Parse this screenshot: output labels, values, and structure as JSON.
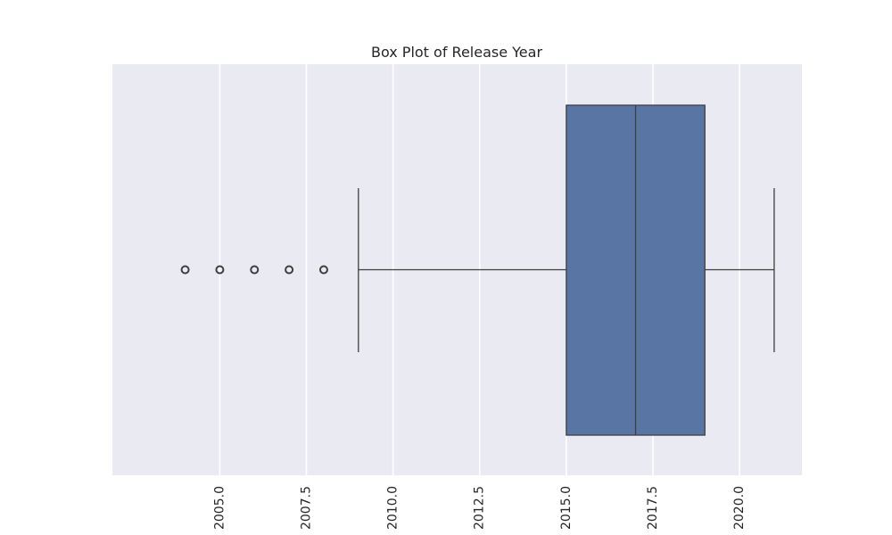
{
  "chart_data": {
    "type": "box",
    "title": "Box Plot of Release Year",
    "xlabel": "",
    "ylabel": "",
    "xlim": [
      2001.9,
      2021.8
    ],
    "xticks": [
      2005.0,
      2007.5,
      2010.0,
      2012.5,
      2015.0,
      2017.5,
      2020.0
    ],
    "xtick_labels": [
      "2005.0",
      "2007.5",
      "2010.0",
      "2012.5",
      "2015.0",
      "2017.5",
      "2020.0"
    ],
    "grid": true,
    "box": {
      "q1": 2015,
      "median": 2017,
      "q3": 2019,
      "whisker_low": 2009,
      "whisker_high": 2021,
      "outliers": [
        2004,
        2005,
        2006,
        2007,
        2008
      ]
    },
    "colors": {
      "box_fill": "#5875a4",
      "line": "#3f3f3f",
      "background": "#eaeaf2",
      "grid": "#ffffff"
    }
  }
}
